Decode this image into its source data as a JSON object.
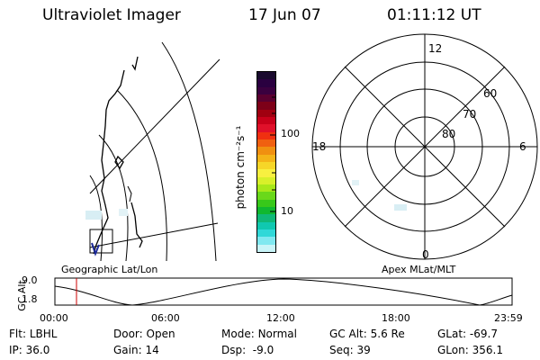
{
  "header": {
    "instrument": "Ultraviolet Imager",
    "date": "17 Jun 07",
    "time": "01:11:12 UT"
  },
  "geo_panel": {
    "label": "Geographic Lat/Lon"
  },
  "apex_panel": {
    "label": "Apex MLat/MLT",
    "mlt_labels": [
      "12",
      "18",
      "6",
      "0"
    ],
    "mlat_labels": [
      "60",
      "70",
      "80"
    ]
  },
  "colorbar": {
    "unit": "photon cm⁻²s⁻¹",
    "ticks": [
      "100",
      "10"
    ],
    "colors": [
      "#1a0a2e",
      "#2a0040",
      "#3a003f",
      "#5a0030",
      "#7d0018",
      "#a00010",
      "#c8001a",
      "#e0102a",
      "#f03010",
      "#f06010",
      "#f09010",
      "#f4b418",
      "#f6d628",
      "#f8f040",
      "#d8f02a",
      "#a8e81a",
      "#6ad81a",
      "#38c81a",
      "#10b830",
      "#10b878",
      "#10c8b0",
      "#30d8d8",
      "#80e8f0",
      "#c8f4f8"
    ]
  },
  "altitude_plot": {
    "ylabel": "GC Alt",
    "yticks": [
      "9.0",
      "1.8"
    ],
    "xticks": [
      "00:00",
      "06:00",
      "12:00",
      "18:00",
      "23:59"
    ],
    "marker_color": "#cc0000"
  },
  "status": {
    "filter_label": "Flt:",
    "filter_value": "LBHL",
    "ip_label": "IP:",
    "ip_value": "36.0",
    "door_label": "Door:",
    "door_value": "Open",
    "gain_label": "Gain:",
    "gain_value": "14",
    "mode_label": "Mode:",
    "mode_value": "Normal",
    "dsp_label": "Dsp:",
    "dsp_value": "-9.0",
    "gcalt_label": "GC Alt:",
    "gcalt_value": "5.6 Re",
    "seq_label": "Seq:",
    "seq_value": "39",
    "glat_label": "GLat:",
    "glat_value": "-69.7",
    "glon_label": "GLon:",
    "glon_value": "356.1"
  }
}
